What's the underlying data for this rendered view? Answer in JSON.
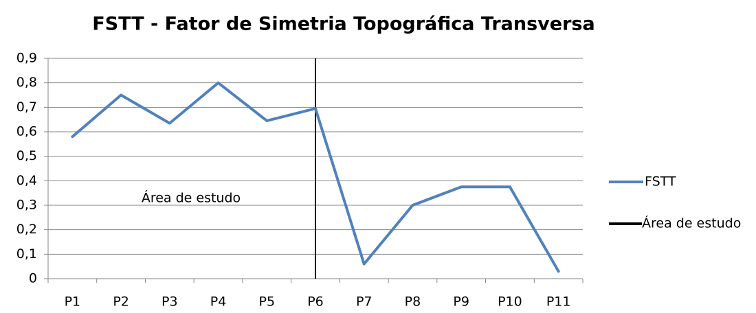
{
  "chart_data": {
    "type": "line",
    "title": "FSTT - Fator de Simetria Topográfica Transversa",
    "categories": [
      "P1",
      "P2",
      "P3",
      "P4",
      "P5",
      "P6",
      "P7",
      "P8",
      "P9",
      "P10",
      "P11"
    ],
    "series": [
      {
        "name": "FSTT",
        "color": "#4f81bd",
        "values": [
          0.58,
          0.75,
          0.635,
          0.8,
          0.645,
          0.695,
          0.06,
          0.3,
          0.375,
          0.375,
          0.03
        ]
      }
    ],
    "reference_lines": [
      {
        "name": "Área de estudo",
        "color": "#000000",
        "x": 5.5
      }
    ],
    "annotations": [
      "Área de estudo"
    ],
    "ylim": [
      0,
      0.9
    ],
    "yticks": [
      0,
      {
        "value": 0.1,
        "label": "0,1"
      },
      {
        "value": 0.2,
        "label": "0,2"
      },
      {
        "value": 0.3,
        "label": "0,3"
      },
      {
        "value": 0.4,
        "label": "0,4"
      },
      {
        "value": 0.5,
        "label": "0,5"
      },
      {
        "value": 0.6,
        "label": "0,6"
      },
      {
        "value": 0.7,
        "label": "0,7"
      },
      {
        "value": 0.8,
        "label": "0,8"
      },
      {
        "value": 0.9,
        "label": "0,9"
      }
    ],
    "grid": true,
    "legend": "right"
  }
}
